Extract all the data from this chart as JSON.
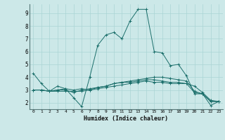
{
  "title": "",
  "xlabel": "Humidex (Indice chaleur)",
  "bg_color": "#cce8e8",
  "line_color": "#1a6e6a",
  "grid_color": "#aad4d4",
  "xlim": [
    -0.5,
    23.5
  ],
  "ylim": [
    1.5,
    9.7
  ],
  "yticks": [
    2,
    3,
    4,
    5,
    6,
    7,
    8,
    9
  ],
  "xticks": [
    0,
    1,
    2,
    3,
    4,
    5,
    6,
    7,
    8,
    9,
    10,
    11,
    12,
    13,
    14,
    15,
    16,
    17,
    18,
    19,
    20,
    21,
    22,
    23
  ],
  "series": [
    [
      4.3,
      3.5,
      2.9,
      3.3,
      3.1,
      2.4,
      1.7,
      4.0,
      6.5,
      7.3,
      7.5,
      7.0,
      8.4,
      9.3,
      9.3,
      6.0,
      5.9,
      4.9,
      5.0,
      4.1,
      2.7,
      2.7,
      1.8,
      2.1
    ],
    [
      3.0,
      3.0,
      2.9,
      2.9,
      2.9,
      2.9,
      2.9,
      3.0,
      3.1,
      3.2,
      3.3,
      3.4,
      3.5,
      3.6,
      3.7,
      3.6,
      3.6,
      3.5,
      3.5,
      3.5,
      3.3,
      2.8,
      2.2,
      2.1
    ],
    [
      3.0,
      3.0,
      2.9,
      3.0,
      3.0,
      2.8,
      3.0,
      3.1,
      3.2,
      3.3,
      3.5,
      3.6,
      3.6,
      3.7,
      3.8,
      3.8,
      3.7,
      3.6,
      3.6,
      3.5,
      2.8,
      2.7,
      2.1,
      2.1
    ],
    [
      3.0,
      3.0,
      2.9,
      3.0,
      3.1,
      3.0,
      3.1,
      3.0,
      3.2,
      3.3,
      3.5,
      3.6,
      3.7,
      3.8,
      3.9,
      4.0,
      4.0,
      3.9,
      3.8,
      3.7,
      2.9,
      2.7,
      2.1,
      2.1
    ]
  ]
}
